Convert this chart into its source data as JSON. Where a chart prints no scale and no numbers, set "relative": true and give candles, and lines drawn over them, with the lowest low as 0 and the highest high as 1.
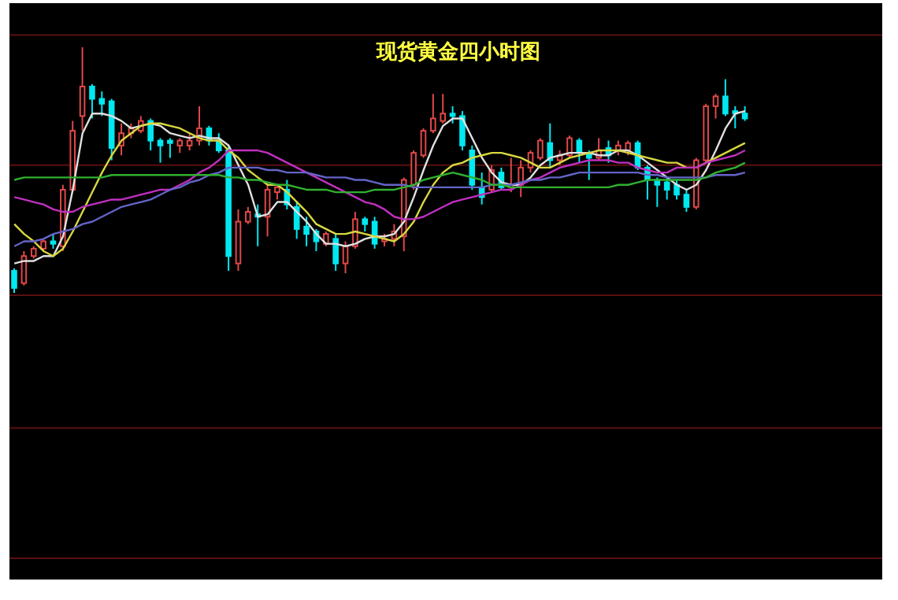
{
  "chart_data": {
    "type": "candlestick",
    "title": "现货黄金四小时图",
    "relative": true,
    "ref_lines": [
      {
        "axis": "y",
        "value": 1.05,
        "color": "#5a1010"
      },
      {
        "axis": "y",
        "value": 0.52,
        "color": "#5a1010"
      },
      {
        "axis": "y",
        "value": -0.01,
        "color": "#5a1010"
      },
      {
        "axis": "y",
        "value": -0.55,
        "color": "#5a1010"
      },
      {
        "axis": "y",
        "value": -1.08,
        "color": "#5a1010"
      }
    ],
    "categories": [
      null,
      null,
      null,
      null,
      null,
      null,
      null,
      null,
      null,
      null,
      null,
      null,
      null,
      null,
      null,
      null,
      null,
      null,
      null,
      null,
      null,
      null,
      null,
      null,
      null,
      null,
      null,
      null,
      null,
      null,
      null,
      null,
      null,
      null,
      null,
      null,
      null,
      null,
      null,
      null,
      null,
      null,
      null,
      null,
      null,
      null,
      null,
      null,
      null,
      null,
      null,
      null,
      null,
      null,
      null,
      null,
      null,
      null,
      null,
      null,
      null,
      null,
      null,
      null,
      null,
      null,
      null,
      null,
      null,
      null,
      null,
      null,
      null,
      null,
      null,
      null
    ],
    "ohlc": [
      [
        0.09,
        0.1,
        0,
        0.02
      ],
      [
        0.04,
        0.17,
        0.03,
        0.15
      ],
      [
        0.15,
        0.19,
        0.14,
        0.18
      ],
      [
        0.18,
        0.22,
        0.17,
        0.21
      ],
      [
        0.21,
        0.24,
        0.18,
        0.2
      ],
      [
        0.19,
        0.44,
        0.17,
        0.42
      ],
      [
        0.42,
        0.7,
        0.41,
        0.66
      ],
      [
        0.72,
        1,
        0.66,
        0.84
      ],
      [
        0.84,
        0.85,
        0.71,
        0.79
      ],
      [
        0.79,
        0.82,
        0.72,
        0.77
      ],
      [
        0.78,
        0.79,
        0.54,
        0.59
      ],
      [
        0.6,
        0.69,
        0.56,
        0.65
      ],
      [
        0.65,
        0.69,
        0.63,
        0.67
      ],
      [
        0.66,
        0.72,
        0.65,
        0.7
      ],
      [
        0.7,
        0.71,
        0.58,
        0.62
      ],
      [
        0.62,
        0.63,
        0.53,
        0.6
      ],
      [
        0.62,
        0.63,
        0.55,
        0.61
      ],
      [
        0.6,
        0.63,
        0.57,
        0.62
      ],
      [
        0.6,
        0.65,
        0.58,
        0.62
      ],
      [
        0.62,
        0.76,
        0.6,
        0.67
      ],
      [
        0.67,
        0.68,
        0.6,
        0.62
      ],
      [
        0.62,
        0.65,
        0.57,
        0.58
      ],
      [
        0.58,
        0.6,
        0.09,
        0.15
      ],
      [
        0.12,
        0.34,
        0.09,
        0.29
      ],
      [
        0.29,
        0.35,
        0.28,
        0.33
      ],
      [
        0.32,
        0.36,
        0.19,
        0.31
      ],
      [
        0.31,
        0.44,
        0.23,
        0.42
      ],
      [
        0.41,
        0.44,
        0.38,
        0.43
      ],
      [
        0.42,
        0.46,
        0.34,
        0.36
      ],
      [
        0.35,
        0.37,
        0.22,
        0.26
      ],
      [
        0.27,
        0.31,
        0.19,
        0.24
      ],
      [
        0.25,
        0.26,
        0.17,
        0.21
      ],
      [
        0.2,
        0.25,
        0.19,
        0.24
      ],
      [
        0.22,
        0.24,
        0.09,
        0.12
      ],
      [
        0.12,
        0.21,
        0.08,
        0.19
      ],
      [
        0.19,
        0.33,
        0.18,
        0.3
      ],
      [
        0.3,
        0.31,
        0.25,
        0.28
      ],
      [
        0.29,
        0.31,
        0.18,
        0.2
      ],
      [
        0.21,
        0.24,
        0.19,
        0.22
      ],
      [
        0.22,
        0.28,
        0.19,
        0.25
      ],
      [
        0.23,
        0.47,
        0.17,
        0.46
      ],
      [
        0.44,
        0.58,
        0.42,
        0.57
      ],
      [
        0.56,
        0.67,
        0.55,
        0.66
      ],
      [
        0.66,
        0.81,
        0.65,
        0.71
      ],
      [
        0.7,
        0.81,
        0.69,
        0.73
      ],
      [
        0.73,
        0.76,
        0.69,
        0.72
      ],
      [
        0.72,
        0.74,
        0.58,
        0.6
      ],
      [
        0.58,
        0.6,
        0.42,
        0.44
      ],
      [
        0.43,
        0.49,
        0.36,
        0.39
      ],
      [
        0.42,
        0.52,
        0.41,
        0.5
      ],
      [
        0.49,
        0.51,
        0.42,
        0.43
      ],
      [
        0.43,
        0.55,
        0.41,
        0.44
      ],
      [
        0.44,
        0.54,
        0.39,
        0.51
      ],
      [
        0.51,
        0.58,
        0.49,
        0.57
      ],
      [
        0.55,
        0.63,
        0.54,
        0.62
      ],
      [
        0.61,
        0.69,
        0.51,
        0.54
      ],
      [
        0.54,
        0.58,
        0.52,
        0.56
      ],
      [
        0.56,
        0.64,
        0.55,
        0.63
      ],
      [
        0.62,
        0.63,
        0.53,
        0.57
      ],
      [
        0.57,
        0.58,
        0.46,
        0.55
      ],
      [
        0.55,
        0.63,
        0.54,
        0.58
      ],
      [
        0.59,
        0.62,
        0.53,
        0.56
      ],
      [
        0.58,
        0.62,
        0.56,
        0.6
      ],
      [
        0.58,
        0.62,
        0.56,
        0.61
      ],
      [
        0.61,
        0.62,
        0.5,
        0.51
      ],
      [
        0.51,
        0.52,
        0.38,
        0.46
      ],
      [
        0.46,
        0.47,
        0.35,
        0.44
      ],
      [
        0.45,
        0.47,
        0.38,
        0.42
      ],
      [
        0.44,
        0.46,
        0.38,
        0.4
      ],
      [
        0.4,
        0.42,
        0.33,
        0.35
      ],
      [
        0.35,
        0.55,
        0.34,
        0.54
      ],
      [
        0.54,
        0.77,
        0.53,
        0.76
      ],
      [
        0.76,
        0.81,
        0.71,
        0.8
      ],
      [
        0.8,
        0.87,
        0.72,
        0.73
      ],
      [
        0.74,
        0.76,
        0.67,
        0.73
      ],
      [
        0.73,
        0.76,
        0.7,
        0.71
      ]
    ],
    "colors": [
      "#00e8f0",
      "#e04848",
      "#e04848",
      "#e04848",
      "#00e8f0",
      "#e04848",
      "#e04848",
      "#e04848",
      "#00e8f0",
      "#00e8f0",
      "#00e8f0",
      "#e04848",
      "#e04848",
      "#e04848",
      "#00e8f0",
      "#00e8f0",
      "#00e8f0",
      "#e04848",
      "#e04848",
      "#e04848",
      "#00e8f0",
      "#00e8f0",
      "#00e8f0",
      "#e04848",
      "#e04848",
      "#00e8f0",
      "#e04848",
      "#e04848",
      "#00e8f0",
      "#00e8f0",
      "#00e8f0",
      "#00e8f0",
      "#e04848",
      "#00e8f0",
      "#e04848",
      "#e04848",
      "#00e8f0",
      "#00e8f0",
      "#e04848",
      "#e04848",
      "#e04848",
      "#e04848",
      "#e04848",
      "#e04848",
      "#e04848",
      "#00e8f0",
      "#00e8f0",
      "#00e8f0",
      "#00e8f0",
      "#e04848",
      "#00e8f0",
      "#e04848",
      "#e04848",
      "#e04848",
      "#e04848",
      "#00e8f0",
      "#e04848",
      "#e04848",
      "#00e8f0",
      "#00e8f0",
      "#e04848",
      "#00e8f0",
      "#e04848",
      "#e04848",
      "#00e8f0",
      "#00e8f0",
      "#00e8f0",
      "#00e8f0",
      "#00e8f0",
      "#00e8f0",
      "#e04848",
      "#e04848",
      "#e04848",
      "#00e8f0",
      "#00e8f0",
      "#00e8f0"
    ],
    "series": [
      {
        "type": "line",
        "color": "#e0e0e0",
        "values": [
          0.12,
          0.13,
          0.13,
          0.15,
          0.15,
          0.23,
          0.42,
          0.65,
          0.73,
          0.73,
          0.72,
          0.7,
          0.67,
          0.68,
          0.69,
          0.68,
          0.65,
          0.64,
          0.63,
          0.64,
          0.63,
          0.63,
          0.6,
          0.52,
          0.44,
          0.31,
          0.32,
          0.37,
          0.37,
          0.33,
          0.29,
          0.24,
          0.2,
          0.2,
          0.19,
          0.2,
          0.22,
          0.23,
          0.23,
          0.24,
          0.29,
          0.39,
          0.5,
          0.6,
          0.68,
          0.71,
          0.71,
          0.63,
          0.55,
          0.49,
          0.45,
          0.44,
          0.44,
          0.47,
          0.52,
          0.55,
          0.56,
          0.57,
          0.57,
          0.57,
          0.56,
          0.56,
          0.58,
          0.58,
          0.56,
          0.53,
          0.5,
          0.47,
          0.44,
          0.42,
          0.44,
          0.5,
          0.58,
          0.67,
          0.73,
          0.74
        ]
      },
      {
        "type": "line",
        "color": "#d8d840",
        "values": [
          0.28,
          0.24,
          0.21,
          0.17,
          0.15,
          0.18,
          0.25,
          0.33,
          0.41,
          0.49,
          0.56,
          0.62,
          0.65,
          0.68,
          0.69,
          0.69,
          0.68,
          0.67,
          0.65,
          0.63,
          0.62,
          0.62,
          0.58,
          0.55,
          0.5,
          0.47,
          0.44,
          0.44,
          0.41,
          0.37,
          0.33,
          0.28,
          0.26,
          0.24,
          0.24,
          0.25,
          0.24,
          0.23,
          0.22,
          0.21,
          0.24,
          0.29,
          0.37,
          0.44,
          0.49,
          0.52,
          0.53,
          0.55,
          0.56,
          0.57,
          0.57,
          0.56,
          0.55,
          0.53,
          0.51,
          0.51,
          0.53,
          0.55,
          0.56,
          0.57,
          0.58,
          0.58,
          0.58,
          0.57,
          0.56,
          0.55,
          0.54,
          0.53,
          0.53,
          0.51,
          0.51,
          0.53,
          0.55,
          0.57,
          0.59,
          0.61
        ]
      },
      {
        "type": "line",
        "color": "#c030c0",
        "values": [
          0.39,
          0.38,
          0.37,
          0.36,
          0.34,
          0.33,
          0.33,
          0.35,
          0.36,
          0.37,
          0.38,
          0.38,
          0.39,
          0.4,
          0.41,
          0.42,
          0.42,
          0.44,
          0.46,
          0.49,
          0.51,
          0.54,
          0.58,
          0.58,
          0.58,
          0.58,
          0.57,
          0.55,
          0.53,
          0.51,
          0.49,
          0.47,
          0.45,
          0.43,
          0.41,
          0.39,
          0.37,
          0.36,
          0.34,
          0.31,
          0.3,
          0.3,
          0.31,
          0.33,
          0.35,
          0.37,
          0.38,
          0.39,
          0.4,
          0.41,
          0.42,
          0.42,
          0.44,
          0.46,
          0.47,
          0.49,
          0.51,
          0.52,
          0.53,
          0.54,
          0.54,
          0.54,
          0.53,
          0.53,
          0.51,
          0.5,
          0.49,
          0.49,
          0.51,
          0.51,
          0.51,
          0.53,
          0.54,
          0.55,
          0.56,
          0.58
        ]
      },
      {
        "type": "line",
        "color": "#6464c8",
        "values": [
          0.19,
          0.21,
          0.21,
          0.22,
          0.24,
          0.25,
          0.26,
          0.28,
          0.29,
          0.31,
          0.33,
          0.35,
          0.36,
          0.37,
          0.38,
          0.4,
          0.42,
          0.43,
          0.45,
          0.46,
          0.48,
          0.49,
          0.51,
          0.51,
          0.51,
          0.51,
          0.5,
          0.5,
          0.49,
          0.49,
          0.49,
          0.48,
          0.47,
          0.47,
          0.47,
          0.46,
          0.46,
          0.45,
          0.44,
          0.44,
          0.44,
          0.43,
          0.43,
          0.43,
          0.43,
          0.43,
          0.43,
          0.43,
          0.43,
          0.44,
          0.44,
          0.44,
          0.45,
          0.46,
          0.46,
          0.47,
          0.47,
          0.48,
          0.49,
          0.49,
          0.49,
          0.49,
          0.49,
          0.49,
          0.49,
          0.48,
          0.48,
          0.47,
          0.47,
          0.47,
          0.47,
          0.47,
          0.48,
          0.48,
          0.48,
          0.49
        ]
      },
      {
        "type": "line",
        "color": "#30b030",
        "values": [
          0.46,
          0.47,
          0.47,
          0.47,
          0.47,
          0.47,
          0.47,
          0.47,
          0.47,
          0.47,
          0.48,
          0.48,
          0.48,
          0.48,
          0.48,
          0.48,
          0.48,
          0.48,
          0.48,
          0.48,
          0.48,
          0.48,
          0.47,
          0.47,
          0.46,
          0.46,
          0.45,
          0.44,
          0.44,
          0.43,
          0.42,
          0.42,
          0.42,
          0.41,
          0.41,
          0.41,
          0.41,
          0.42,
          0.42,
          0.42,
          0.43,
          0.44,
          0.46,
          0.47,
          0.48,
          0.49,
          0.48,
          0.47,
          0.46,
          0.44,
          0.44,
          0.43,
          0.43,
          0.43,
          0.43,
          0.43,
          0.43,
          0.43,
          0.43,
          0.43,
          0.43,
          0.43,
          0.44,
          0.44,
          0.45,
          0.46,
          0.46,
          0.46,
          0.46,
          0.46,
          0.46,
          0.47,
          0.49,
          0.5,
          0.51,
          0.53
        ]
      }
    ]
  }
}
